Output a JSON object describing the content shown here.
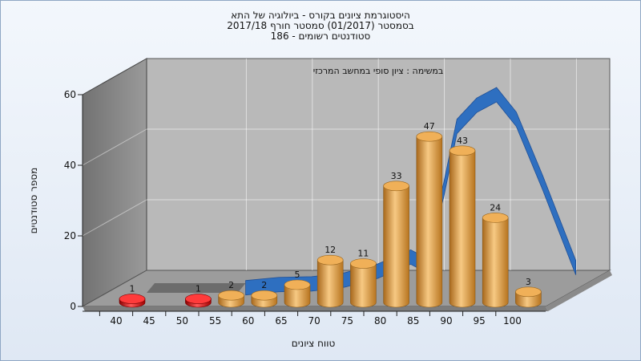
{
  "chart_data": {
    "type": "bar",
    "title_lines": [
      "היסטוגרמת ציונים בקורס - ביולוגיה של התא",
      "בסמסטר  (01/2017)  סמסטר חורף 2017/18",
      "סטודנטים רשומים - 186"
    ],
    "annotation": "במשימה : ציון סופי במחשב המרכזי",
    "xlabel": "טווח ציונים",
    "ylabel": "מספר סטודנטים",
    "x_ticks": [
      "40",
      "45",
      "50",
      "55",
      "60",
      "65",
      "70",
      "75",
      "80",
      "85",
      "90",
      "95",
      "100"
    ],
    "y_ticks": [
      "0",
      "20",
      "40",
      "60"
    ],
    "ylim": [
      0,
      60
    ],
    "bars": [
      {
        "x": 40,
        "value": 1,
        "label": "1",
        "color": "#d81818"
      },
      {
        "x": 50,
        "value": 1,
        "label": "1",
        "color": "#d81818"
      },
      {
        "x": 55,
        "value": 2,
        "label": "2",
        "color": "#e8a13c"
      },
      {
        "x": 60,
        "value": 2,
        "label": "2",
        "color": "#e8a13c"
      },
      {
        "x": 65,
        "value": 5,
        "label": "5",
        "color": "#e8a13c"
      },
      {
        "x": 70,
        "value": 12,
        "label": "12",
        "color": "#e8a13c"
      },
      {
        "x": 75,
        "value": 11,
        "label": "11",
        "color": "#e8a13c"
      },
      {
        "x": 80,
        "value": 33,
        "label": "33",
        "color": "#e8a13c"
      },
      {
        "x": 85,
        "value": 47,
        "label": "47",
        "color": "#e8a13c"
      },
      {
        "x": 90,
        "value": 43,
        "label": "43",
        "color": "#e8a13c"
      },
      {
        "x": 95,
        "value": 24,
        "label": "24",
        "color": "#e8a13c"
      },
      {
        "x": 100,
        "value": 3,
        "label": "3",
        "color": "#e8a13c"
      }
    ],
    "curve": {
      "color": "#2e6fc0",
      "points": [
        [
          55,
          0.3
        ],
        [
          60,
          1.2
        ],
        [
          65,
          1.4
        ],
        [
          70,
          2.5
        ],
        [
          75,
          5
        ],
        [
          80,
          9
        ],
        [
          82,
          7
        ],
        [
          85,
          28
        ],
        [
          87,
          46
        ],
        [
          90,
          52
        ],
        [
          93,
          55
        ],
        [
          96,
          48
        ],
        [
          100,
          30
        ],
        [
          105,
          6
        ]
      ]
    },
    "grid": true
  }
}
